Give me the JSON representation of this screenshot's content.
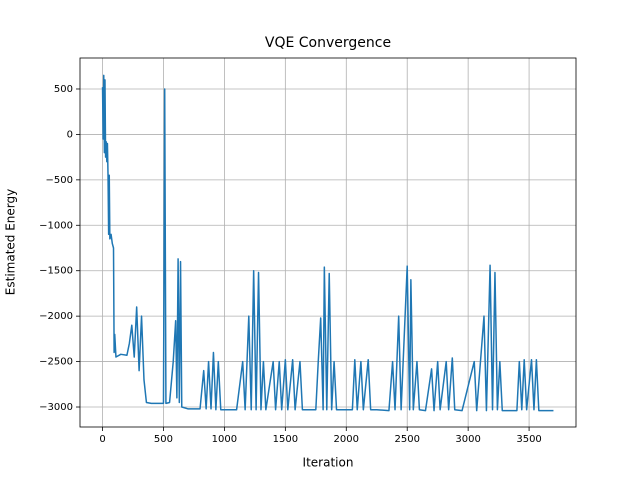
{
  "chart_data": {
    "type": "line",
    "title": "VQE Convergence",
    "x_label": "Iteration",
    "y_label": "Estimated Energy",
    "color": "#1f77b4",
    "grid": true,
    "xlim": [
      -185,
      3885
    ],
    "ylim": [
      -3220,
      841
    ],
    "xticks": [
      0,
      500,
      1000,
      1500,
      2000,
      2500,
      3000,
      3500
    ],
    "yticks": [
      {
        "value": -3000,
        "label": "−3000"
      },
      {
        "value": -2500,
        "label": "−2500"
      },
      {
        "value": -2000,
        "label": "−2000"
      },
      {
        "value": -1500,
        "label": "−1500"
      },
      {
        "value": -1000,
        "label": "−1000"
      },
      {
        "value": -500,
        "label": "−500"
      },
      0,
      500
    ],
    "x": [
      0,
      5,
      10,
      15,
      20,
      25,
      30,
      35,
      40,
      45,
      50,
      55,
      60,
      70,
      80,
      90,
      95,
      100,
      110,
      150,
      200,
      220,
      240,
      260,
      280,
      300,
      320,
      340,
      360,
      400,
      450,
      500,
      510,
      520,
      550,
      580,
      600,
      610,
      620,
      630,
      640,
      650,
      700,
      800,
      830,
      850,
      870,
      890,
      910,
      930,
      950,
      970,
      1100,
      1150,
      1170,
      1200,
      1220,
      1240,
      1260,
      1280,
      1300,
      1320,
      1340,
      1400,
      1420,
      1450,
      1470,
      1500,
      1520,
      1560,
      1580,
      1620,
      1640,
      1750,
      1770,
      1790,
      1810,
      1820,
      1840,
      1860,
      1880,
      1900,
      1920,
      2050,
      2070,
      2090,
      2120,
      2140,
      2180,
      2200,
      2250,
      2350,
      2380,
      2400,
      2430,
      2450,
      2500,
      2520,
      2530,
      2550,
      2580,
      2600,
      2650,
      2700,
      2720,
      2750,
      2770,
      2820,
      2840,
      2870,
      2890,
      2950,
      3050,
      3070,
      3130,
      3150,
      3180,
      3200,
      3220,
      3240,
      3260,
      3280,
      3400,
      3420,
      3440,
      3460,
      3480,
      3520,
      3540,
      3560,
      3580,
      3700
    ],
    "values": [
      520,
      -50,
      650,
      -200,
      600,
      -250,
      -80,
      -300,
      -100,
      -450,
      -1100,
      -450,
      -1150,
      -1100,
      -1200,
      -1250,
      -2400,
      -2200,
      -2450,
      -2420,
      -2430,
      -2300,
      -2100,
      -2450,
      -1900,
      -2600,
      -2000,
      -2700,
      -2950,
      -2960,
      -2960,
      -2960,
      500,
      -2960,
      -2950,
      -2500,
      -2050,
      -2900,
      -1370,
      -2950,
      -1400,
      -3000,
      -3020,
      -3020,
      -2600,
      -3020,
      -2500,
      -3020,
      -2400,
      -3030,
      -2500,
      -3030,
      -3030,
      -2500,
      -3030,
      -2000,
      -3030,
      -1500,
      -3030,
      -1520,
      -3030,
      -2500,
      -3030,
      -2500,
      -3030,
      -2500,
      -3030,
      -2480,
      -3030,
      -2480,
      -3030,
      -2500,
      -3030,
      -3030,
      -2500,
      -2020,
      -3030,
      -1460,
      -3030,
      -1530,
      -3030,
      -2500,
      -3030,
      -3030,
      -2480,
      -3030,
      -2500,
      -3030,
      -2480,
      -3030,
      -3030,
      -3040,
      -2500,
      -3030,
      -2000,
      -3030,
      -1450,
      -3030,
      -1600,
      -3030,
      -2500,
      -3030,
      -3040,
      -2580,
      -3040,
      -2500,
      -3030,
      -2500,
      -3030,
      -2460,
      -3030,
      -3040,
      -2500,
      -3040,
      -2000,
      -3040,
      -1440,
      -3030,
      -1520,
      -3030,
      -2500,
      -3040,
      -3040,
      -2500,
      -3030,
      -2480,
      -3030,
      -2480,
      -3030,
      -2480,
      -3040,
      -3040
    ]
  }
}
